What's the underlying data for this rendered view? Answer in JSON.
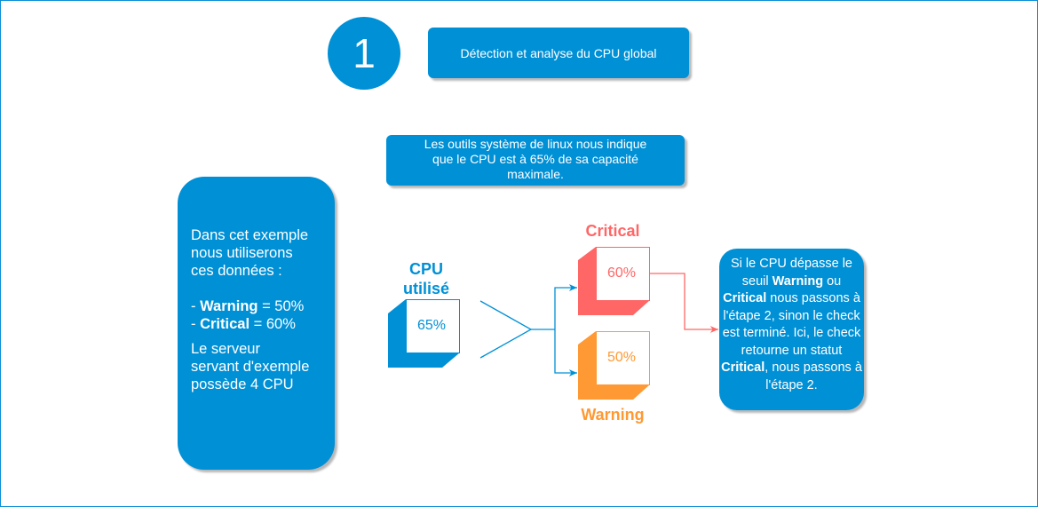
{
  "step_number": "1",
  "title": "Détection et analyse du CPU global",
  "info_text": [
    "Les outils système de linux nous indique",
    "que le CPU est à 65% de sa capacité",
    "maximale."
  ],
  "example_box": {
    "intro": [
      "Dans cet exemple",
      "nous utiliserons",
      "ces données :"
    ],
    "warning_prefix": "- ",
    "warning_label": "Warning",
    "warning_value": " = 50%",
    "critical_prefix": "- ",
    "critical_label": "Critical",
    "critical_value": " = 60%",
    "server": [
      "Le serveur",
      "servant d'exemple",
      "possède 4 CPU"
    ]
  },
  "cpu": {
    "label_line1": "CPU",
    "label_line2": "utilisé",
    "value": "65%"
  },
  "critical": {
    "label": "Critical",
    "value": "60%"
  },
  "warning": {
    "label": "Warning",
    "value": "50%"
  },
  "result_box": {
    "t1": "Si le CPU dépasse le seuil ",
    "b1": "Warning",
    "t2": " ou ",
    "b2": "Critical",
    "t3": " nous passons à l'étape 2, sinon le check est terminé. Ici, le check retourne un statut ",
    "b3": "Critical",
    "t4": ", nous passons à l'étape 2."
  },
  "colors": {
    "blue": "#0090d6",
    "critical": "#ff6666",
    "warning": "#ff9933"
  }
}
